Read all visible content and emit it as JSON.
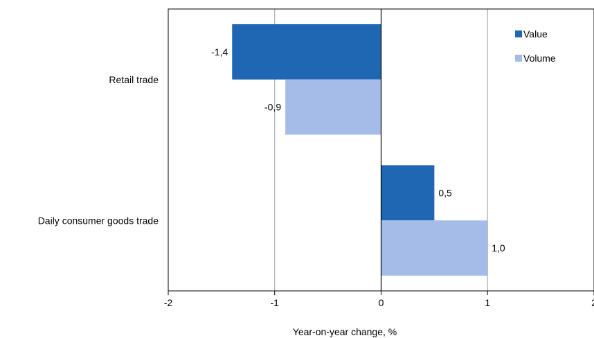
{
  "chart_data": {
    "type": "bar",
    "orientation": "horizontal",
    "categories": [
      "Retail trade",
      "Daily consumer goods trade"
    ],
    "series": [
      {
        "name": "Value",
        "values": [
          -1.4,
          0.5
        ],
        "labels": [
          "-1,4",
          "0,5"
        ],
        "color": "#1f66b3"
      },
      {
        "name": "Volume",
        "values": [
          -0.9,
          1.0
        ],
        "labels": [
          "-0,9",
          "1,0"
        ],
        "color": "#a6bce8"
      }
    ],
    "xlabel": "Year-on-year change, %",
    "ylabel": "",
    "xlim": [
      -2,
      2
    ],
    "xticks": [
      -2,
      -1,
      0,
      1,
      2
    ],
    "xtick_labels": [
      "-2",
      "-1",
      "0",
      "1",
      "2"
    ],
    "grid": true,
    "legend_position": "top-right"
  }
}
